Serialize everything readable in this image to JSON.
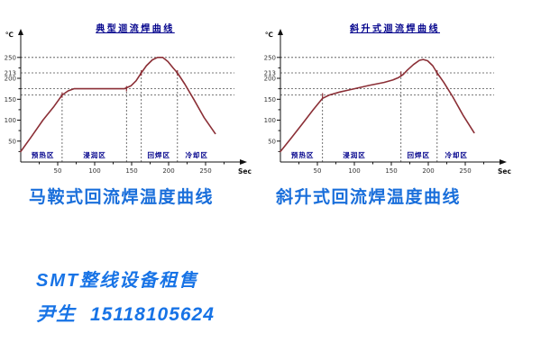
{
  "colors": {
    "curve_red": "#8b2f36",
    "title_navy": "#00008b",
    "caption_blue": "#1a6fdb",
    "footer_blue": "#1773e6"
  },
  "chart_data": [
    {
      "type": "line",
      "title": "典型迴流焊曲线",
      "y_unit": "℃",
      "x_unit": "Sec",
      "x_ticks": [
        50,
        100,
        150,
        200,
        250
      ],
      "y_ticks": [
        50,
        100,
        150,
        200,
        213,
        250
      ],
      "xlim": [
        0,
        300
      ],
      "ylim": [
        0,
        300
      ],
      "grid_dashed_temps": [
        160,
        175,
        213,
        250
      ],
      "zone_dividers": [
        {
          "sec": 56,
          "top_temp": 160
        },
        {
          "sec": 143,
          "top_temp": 175
        },
        {
          "sec": 163,
          "top_temp": 213
        },
        {
          "sec": 212,
          "top_temp": 213
        }
      ],
      "zones": [
        {
          "label": "预热区",
          "center_sec": 30
        },
        {
          "label": "浸润区",
          "center_sec": 100
        },
        {
          "label": "回焊区",
          "center_sec": 187
        },
        {
          "label": "冷却区",
          "center_sec": 238
        }
      ],
      "series": [
        {
          "name": "temperature",
          "color": "#8b2f36",
          "points": [
            [
              0,
              25
            ],
            [
              15,
              62
            ],
            [
              30,
              100
            ],
            [
              45,
              133
            ],
            [
              56,
              160
            ],
            [
              64,
              170
            ],
            [
              72,
              175
            ],
            [
              140,
              175
            ],
            [
              149,
              182
            ],
            [
              156,
              194
            ],
            [
              163,
              213
            ],
            [
              170,
              230
            ],
            [
              178,
              244
            ],
            [
              185,
              250
            ],
            [
              192,
              250
            ],
            [
              199,
              240
            ],
            [
              206,
              225
            ],
            [
              212,
              213
            ],
            [
              222,
              186
            ],
            [
              234,
              150
            ],
            [
              248,
              106
            ],
            [
              263,
              68
            ]
          ]
        }
      ]
    },
    {
      "type": "line",
      "title": "斜升式迴流焊曲线",
      "y_unit": "℃",
      "x_unit": "Sec",
      "x_ticks": [
        50,
        100,
        150,
        200,
        250
      ],
      "y_ticks": [
        50,
        100,
        150,
        200,
        213,
        250
      ],
      "xlim": [
        0,
        300
      ],
      "ylim": [
        0,
        300
      ],
      "grid_dashed_temps": [
        160,
        175,
        213,
        250
      ],
      "zone_dividers": [
        {
          "sec": 57,
          "top_temp": 158
        },
        {
          "sec": 163,
          "top_temp": 210
        },
        {
          "sec": 212,
          "top_temp": 213
        }
      ],
      "zones": [
        {
          "label": "预热区",
          "center_sec": 30
        },
        {
          "label": "浸润区",
          "center_sec": 100
        },
        {
          "label": "回焊区",
          "center_sec": 187
        },
        {
          "label": "冷却区",
          "center_sec": 238
        }
      ],
      "series": [
        {
          "name": "temperature",
          "color": "#8b2f36",
          "points": [
            [
              0,
              25
            ],
            [
              15,
              58
            ],
            [
              30,
              92
            ],
            [
              44,
              124
            ],
            [
              57,
              152
            ],
            [
              66,
              160
            ],
            [
              80,
              167
            ],
            [
              100,
              175
            ],
            [
              120,
              183
            ],
            [
              140,
              190
            ],
            [
              152,
              196
            ],
            [
              160,
              202
            ],
            [
              166,
              209
            ],
            [
              172,
              220
            ],
            [
              180,
              233
            ],
            [
              188,
              243
            ],
            [
              193,
              245
            ],
            [
              199,
              242
            ],
            [
              206,
              230
            ],
            [
              212,
              213
            ],
            [
              221,
              190
            ],
            [
              233,
              156
            ],
            [
              247,
              112
            ],
            [
              262,
              70
            ]
          ]
        }
      ]
    }
  ],
  "captions": [
    "马鞍式回流焊温度曲线",
    "斜升式回流焊温度曲线"
  ],
  "footer": {
    "line1": "SMT整线设备租售",
    "contact_name": "尹生",
    "phone": "15118105624"
  }
}
